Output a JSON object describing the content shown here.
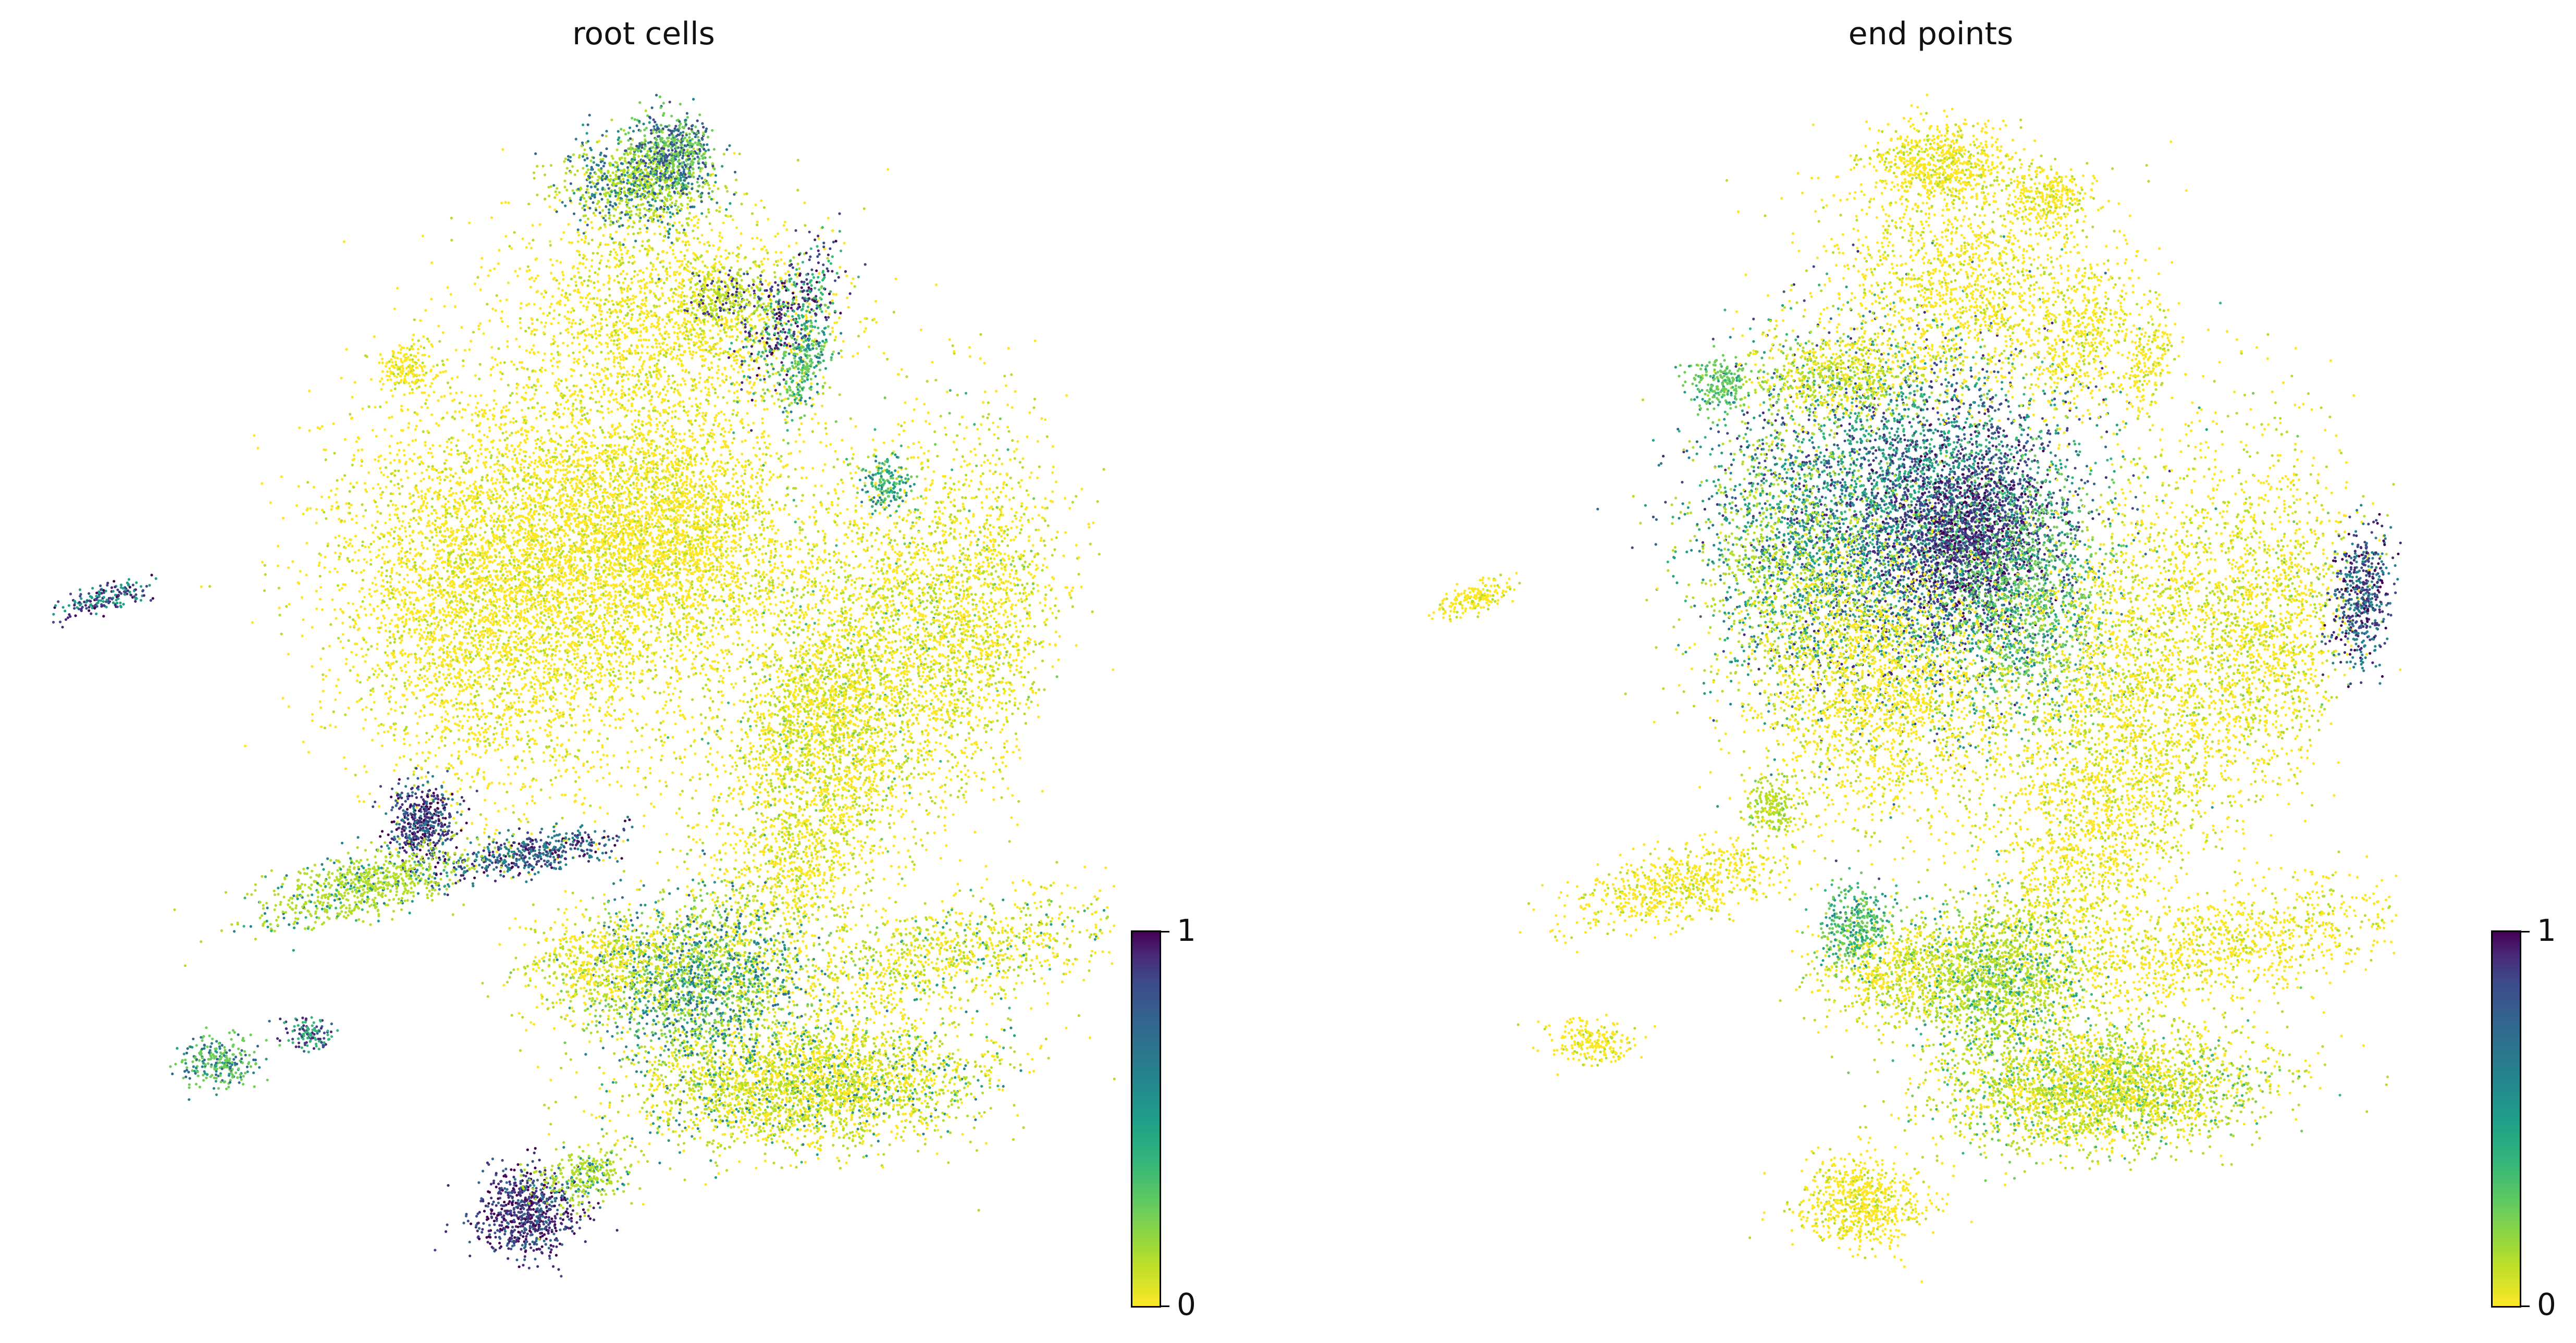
{
  "chart_data": [
    {
      "type": "scatter",
      "title": "root cells",
      "xlabel": "",
      "ylabel": "",
      "colormap": "viridis",
      "colorbar": {
        "min": 0,
        "max": 1,
        "ticks": [
          "0",
          "1"
        ]
      },
      "axes": "off",
      "grid": false,
      "high_value_regions": [
        {
          "region": "small cluster far left",
          "value": 0.9
        },
        {
          "region": "top cluster upper-left",
          "value": 0.5
        },
        {
          "region": "top cluster right edge",
          "value": 0.95
        },
        {
          "region": "left-middle curved streak",
          "value": 0.9
        },
        {
          "region": "central lower band",
          "value": 0.55
        },
        {
          "region": "bottom-left cluster",
          "value": 0.95
        },
        {
          "region": "small far-left-bottom cluster",
          "value": 0.45
        }
      ]
    },
    {
      "type": "scatter",
      "title": "end points",
      "xlabel": "",
      "ylabel": "",
      "colormap": "viridis",
      "colorbar": {
        "min": 0,
        "max": 1,
        "ticks": [
          "0",
          "1"
        ]
      },
      "axes": "off",
      "grid": false,
      "high_value_regions": [
        {
          "region": "upper-left large lobe center",
          "value": 0.95
        },
        {
          "region": "upper-left large lobe rim",
          "value": 0.5
        },
        {
          "region": "right edge lobe",
          "value": 0.9
        },
        {
          "region": "top cluster left patch",
          "value": 0.5
        },
        {
          "region": "lower-middle cluster",
          "value": 0.45
        },
        {
          "region": "bottom-middle elongated cluster",
          "value": 0.3
        }
      ]
    }
  ]
}
